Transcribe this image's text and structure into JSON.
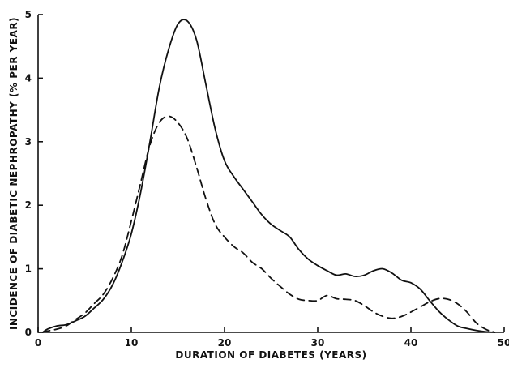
{
  "chart_data": {
    "type": "line",
    "xlabel": "DURATION OF DIABETES (YEARS)",
    "ylabel": "INCIDENCE OF DIABETIC NEPHROPATHY (% PER YEAR)",
    "xlim": [
      0,
      50
    ],
    "ylim": [
      0,
      5
    ],
    "grid": false,
    "x_ticks": [
      0,
      10,
      20,
      30,
      40,
      50
    ],
    "y_ticks": [
      0,
      1,
      2,
      3,
      4,
      5
    ],
    "series": [
      {
        "style": "solid",
        "color": "#111111",
        "x": [
          0.5,
          1,
          2,
          3,
          4,
          5,
          6,
          7,
          8,
          9,
          10,
          11,
          12,
          13,
          14,
          15,
          16,
          17,
          18,
          19,
          20,
          21,
          22,
          23,
          24,
          25,
          26,
          27,
          28,
          29,
          30,
          31,
          32,
          33,
          34,
          35,
          36,
          37,
          38,
          39,
          40,
          41,
          42,
          43,
          44,
          45,
          46,
          47,
          48,
          49
        ],
        "y": [
          0,
          0.05,
          0.1,
          0.12,
          0.18,
          0.25,
          0.38,
          0.52,
          0.75,
          1.1,
          1.55,
          2.2,
          3.0,
          3.85,
          4.45,
          4.85,
          4.9,
          4.6,
          3.9,
          3.2,
          2.7,
          2.45,
          2.25,
          2.05,
          1.85,
          1.7,
          1.6,
          1.5,
          1.3,
          1.15,
          1.05,
          0.97,
          0.9,
          0.92,
          0.88,
          0.9,
          0.97,
          1.0,
          0.93,
          0.82,
          0.78,
          0.68,
          0.5,
          0.33,
          0.2,
          0.1,
          0.06,
          0.03,
          0.01,
          0
        ]
      },
      {
        "style": "dashed",
        "color": "#111111",
        "x": [
          0.5,
          1,
          2,
          3,
          4,
          5,
          6,
          7,
          8,
          9,
          10,
          11,
          12,
          13,
          14,
          15,
          16,
          17,
          18,
          19,
          20,
          21,
          22,
          23,
          24,
          25,
          26,
          27,
          28,
          29,
          30,
          31,
          32,
          33,
          34,
          35,
          36,
          37,
          38,
          39,
          40,
          41,
          42,
          43,
          44,
          45,
          46,
          47,
          48,
          49
        ],
        "y": [
          0,
          0.02,
          0.05,
          0.1,
          0.2,
          0.3,
          0.45,
          0.6,
          0.85,
          1.2,
          1.75,
          2.35,
          2.95,
          3.3,
          3.4,
          3.3,
          3.05,
          2.6,
          2.1,
          1.7,
          1.5,
          1.35,
          1.25,
          1.1,
          1.0,
          0.85,
          0.72,
          0.6,
          0.52,
          0.5,
          0.5,
          0.58,
          0.53,
          0.52,
          0.5,
          0.42,
          0.32,
          0.25,
          0.22,
          0.25,
          0.32,
          0.4,
          0.48,
          0.53,
          0.52,
          0.45,
          0.32,
          0.15,
          0.05,
          0
        ]
      }
    ]
  }
}
